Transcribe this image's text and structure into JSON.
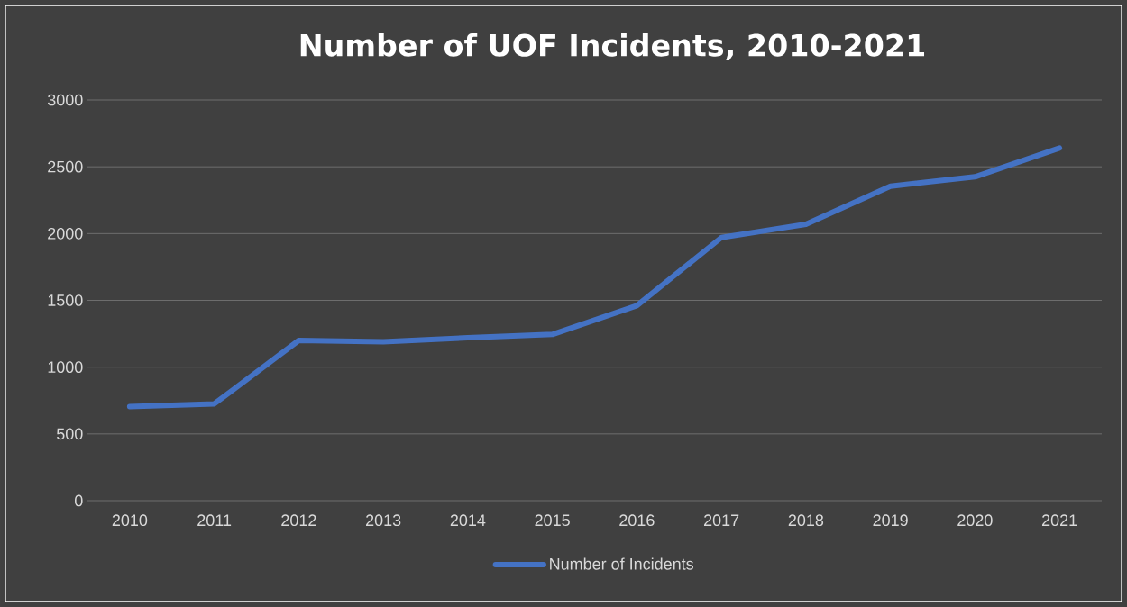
{
  "chart_data": {
    "type": "line",
    "title": "Number of UOF Incidents, 2010-2021",
    "categories": [
      "2010",
      "2011",
      "2012",
      "2013",
      "2014",
      "2015",
      "2016",
      "2017",
      "2018",
      "2019",
      "2020",
      "2021"
    ],
    "series": [
      {
        "name": "Number of Incidents",
        "color": "#4472c4",
        "values": [
          705,
          725,
          1200,
          1190,
          1220,
          1245,
          1460,
          1970,
          2070,
          2355,
          2425,
          2640
        ]
      }
    ],
    "ylim": [
      0,
      3000
    ],
    "yticks": [
      0,
      500,
      1000,
      1500,
      2000,
      2500,
      3000
    ],
    "grid": "y",
    "legend": "bottom",
    "marker": "none",
    "line_style": "solid"
  }
}
